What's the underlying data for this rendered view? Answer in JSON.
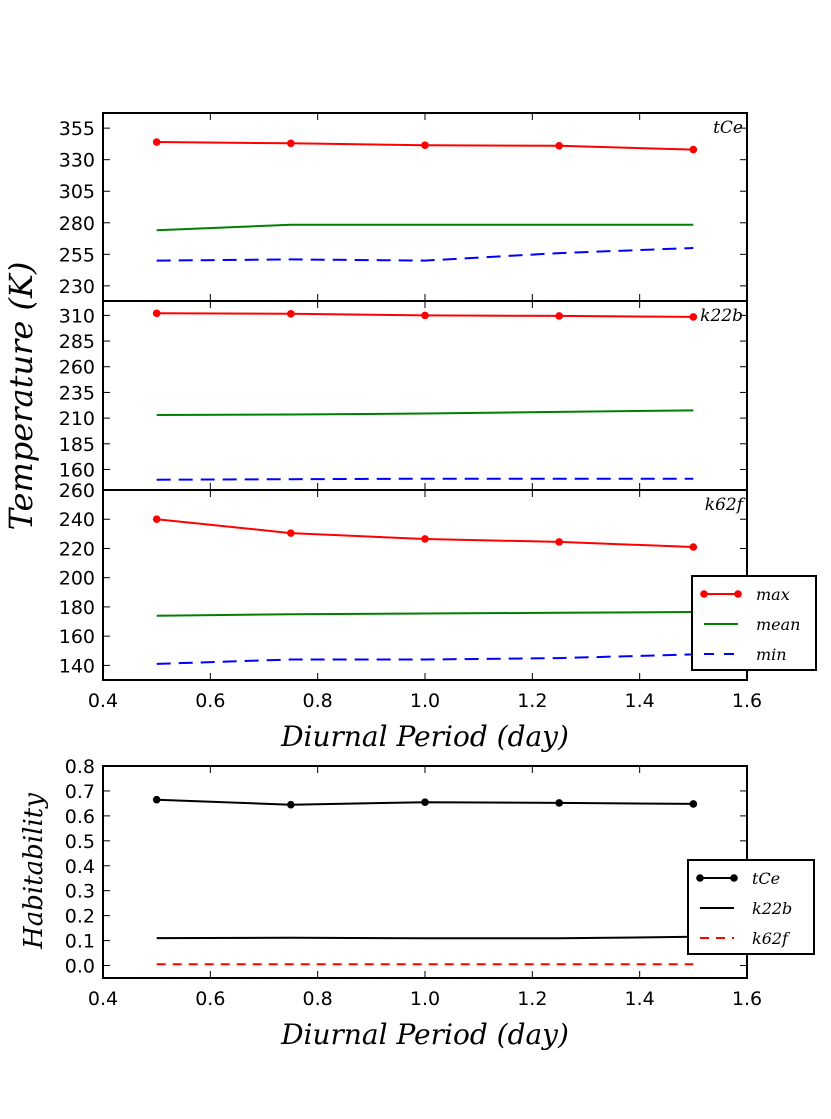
{
  "temperature_ylabel": "Temperature (K)",
  "habitability_ylabel": "Habitability",
  "chart_data": [
    {
      "type": "line",
      "panel": "tCe",
      "annotation": "tCe",
      "x": [
        0.5,
        0.75,
        1.0,
        1.25,
        1.5
      ],
      "xlim": [
        0.4,
        1.6
      ],
      "ylim": [
        218,
        367
      ],
      "yticks": [
        "355",
        "330",
        "305",
        "280",
        "255",
        "230"
      ],
      "ytick_values": [
        355,
        330,
        305,
        280,
        255,
        230
      ],
      "series": [
        {
          "name": "max",
          "color": "#ff0000",
          "values": [
            344,
            343,
            341.5,
            341,
            338
          ]
        },
        {
          "name": "mean",
          "color": "#008000",
          "values": [
            274,
            278.5,
            278.5,
            278.5,
            278.5
          ]
        },
        {
          "name": "min",
          "color": "#0000ff",
          "values": [
            250,
            251,
            250,
            256,
            260
          ]
        }
      ]
    },
    {
      "type": "line",
      "panel": "k22b",
      "annotation": "k22b",
      "x": [
        0.5,
        0.75,
        1.0,
        1.25,
        1.5
      ],
      "xlim": [
        0.4,
        1.6
      ],
      "ylim": [
        140,
        324
      ],
      "yticks": [
        "310",
        "285",
        "260",
        "235",
        "210",
        "185",
        "160"
      ],
      "ytick_values": [
        310,
        285,
        260,
        235,
        210,
        185,
        160
      ],
      "series": [
        {
          "name": "max",
          "color": "#ff0000",
          "values": [
            312,
            311.5,
            310,
            309.5,
            308.5
          ]
        },
        {
          "name": "mean",
          "color": "#008000",
          "values": [
            213,
            213.5,
            214.5,
            216,
            217.5
          ]
        },
        {
          "name": "min",
          "color": "#0000ff",
          "values": [
            150,
            150.5,
            151,
            151,
            151
          ]
        }
      ]
    },
    {
      "type": "line",
      "panel": "k62f",
      "annotation": "k62f",
      "x": [
        0.5,
        0.75,
        1.0,
        1.25,
        1.5
      ],
      "xlim": [
        0.4,
        1.6
      ],
      "ylim": [
        130,
        260
      ],
      "yticks": [
        "260",
        "240",
        "220",
        "200",
        "180",
        "160",
        "140"
      ],
      "ytick_values": [
        260,
        240,
        220,
        200,
        180,
        160,
        140
      ],
      "xticks": [
        "0.4",
        "0.6",
        "0.8",
        "1.0",
        "1.2",
        "1.4",
        "1.6"
      ],
      "xtick_values": [
        0.4,
        0.6,
        0.8,
        1.0,
        1.2,
        1.4,
        1.6
      ],
      "xlabel": "Diurnal Period (day)",
      "series": [
        {
          "name": "max",
          "color": "#ff0000",
          "values": [
            240,
            230.5,
            226.5,
            224.5,
            221
          ]
        },
        {
          "name": "mean",
          "color": "#008000",
          "values": [
            174,
            175,
            175.5,
            176,
            176.5
          ]
        },
        {
          "name": "min",
          "color": "#0000ff",
          "values": [
            141,
            144,
            144,
            145,
            147.5
          ]
        }
      ],
      "legend": {
        "position": "lower-right",
        "entries": [
          "max",
          "mean",
          "min"
        ]
      }
    },
    {
      "type": "line",
      "panel": "habitability",
      "x": [
        0.5,
        0.75,
        1.0,
        1.25,
        1.5
      ],
      "xlim": [
        0.4,
        1.6
      ],
      "ylim": [
        -0.05,
        0.8
      ],
      "yticks": [
        "0.8",
        "0.7",
        "0.6",
        "0.5",
        "0.4",
        "0.3",
        "0.2",
        "0.1",
        "0.0"
      ],
      "ytick_values": [
        0.8,
        0.7,
        0.6,
        0.5,
        0.4,
        0.3,
        0.2,
        0.1,
        0.0
      ],
      "xticks": [
        "0.4",
        "0.6",
        "0.8",
        "1.0",
        "1.2",
        "1.4",
        "1.6"
      ],
      "xtick_values": [
        0.4,
        0.6,
        0.8,
        1.0,
        1.2,
        1.4,
        1.6
      ],
      "xlabel": "Diurnal Period (day)",
      "ylabel": "Habitability",
      "series": [
        {
          "name": "tCe",
          "color": "#000000",
          "values": [
            0.665,
            0.645,
            0.655,
            0.652,
            0.648
          ]
        },
        {
          "name": "k22b",
          "color": "#000000",
          "values": [
            0.11,
            0.111,
            0.109,
            0.109,
            0.115
          ]
        },
        {
          "name": "k62f",
          "color": "#ff0000",
          "values": [
            0.005,
            0.005,
            0.005,
            0.005,
            0.005
          ]
        }
      ],
      "legend": {
        "position": "lower-right",
        "entries": [
          "tCe",
          "k22b",
          "k62f"
        ]
      }
    }
  ]
}
